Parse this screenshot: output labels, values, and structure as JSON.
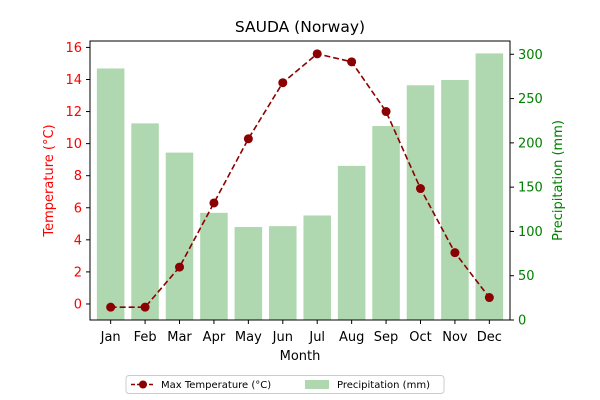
{
  "chart_data": {
    "type": "bar+line",
    "title": "SAUDA (Norway)",
    "xlabel": "Month",
    "categories": [
      "Jan",
      "Feb",
      "Mar",
      "Apr",
      "May",
      "Jun",
      "Jul",
      "Aug",
      "Sep",
      "Oct",
      "Nov",
      "Dec"
    ],
    "left_axis": {
      "label": "Temperature (°C)",
      "ylim": [
        -1,
        16.4
      ],
      "ticks": [
        0,
        2,
        4,
        6,
        8,
        10,
        12,
        14,
        16
      ],
      "color": "#ff0000"
    },
    "right_axis": {
      "label": "Precipitation (mm)",
      "ylim": [
        0,
        315
      ],
      "ticks": [
        0,
        50,
        100,
        150,
        200,
        250,
        300
      ],
      "color": "#008000"
    },
    "series": [
      {
        "name": "Max Temperature (°C)",
        "kind": "line",
        "axis": "left",
        "color": "#8b0000",
        "style": "dashed",
        "values": [
          -0.2,
          -0.2,
          2.3,
          6.3,
          10.3,
          13.8,
          15.6,
          15.1,
          12.0,
          7.2,
          3.2,
          0.4
        ]
      },
      {
        "name": "Precipitation (mm)",
        "kind": "bar",
        "axis": "right",
        "color": "#b0d8b0",
        "values": [
          284,
          222,
          189,
          121,
          105,
          106,
          118,
          174,
          219,
          265,
          271,
          301
        ]
      }
    ],
    "legend": {
      "position": "bottom-center",
      "entries": [
        "Max Temperature (°C)",
        "Precipitation (mm)"
      ]
    },
    "grid": false
  }
}
